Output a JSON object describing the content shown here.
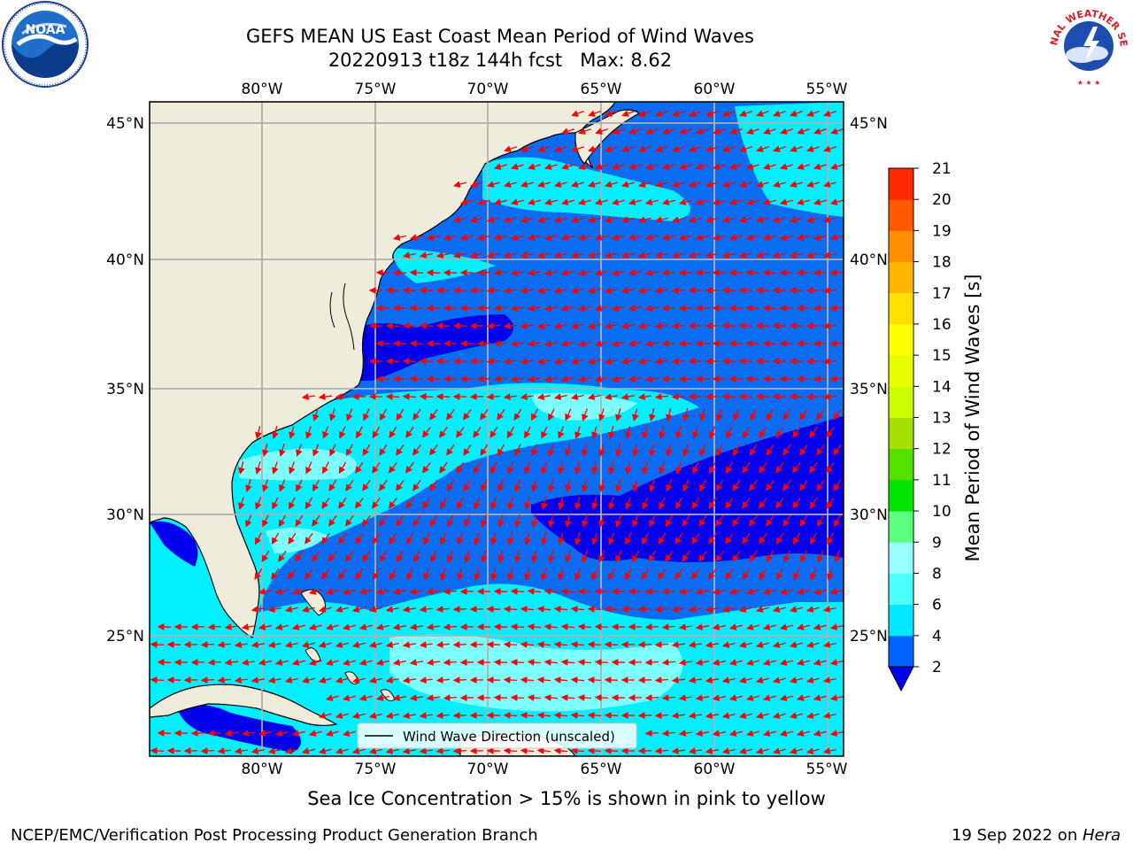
{
  "title": {
    "line1": "GEFS MEAN US East Coast Mean Period of Wind Waves",
    "line2": "20220913 t18z 144h fcst   Max: 8.62"
  },
  "map": {
    "lon_range": [
      -85,
      -54
    ],
    "lat_range": [
      20.5,
      46
    ],
    "lon_ticks": [
      "80°W",
      "75°W",
      "70°W",
      "65°W",
      "60°W",
      "55°W"
    ],
    "lat_ticks": [
      "45°N",
      "40°N",
      "35°N",
      "30°N",
      "25°N"
    ],
    "land_color": "#efecdc",
    "arrow_color": "#ff0000",
    "grid_color": "#b0b0b0"
  },
  "colorbar": {
    "label": "Mean Period of Wind Waves [s]",
    "ticks": [
      "2",
      "4",
      "6",
      "8",
      "9",
      "10",
      "11",
      "12",
      "13",
      "14",
      "15",
      "16",
      "17",
      "18",
      "19",
      "20",
      "21"
    ],
    "colors": [
      "#0063ff",
      "#00e8ff",
      "#4dffff",
      "#99ffff",
      "#5dff80",
      "#00e400",
      "#55e000",
      "#a6e000",
      "#ccff00",
      "#e8ff00",
      "#ffff00",
      "#ffe000",
      "#ffb600",
      "#ff8e00",
      "#ff5a00",
      "#ff2a00",
      "#ff0000"
    ],
    "under_color": "#0000ee"
  },
  "legend": {
    "label": "Wind Wave Direction (unscaled)"
  },
  "note": "Sea Ice Concentration > 15% is shown in pink to yellow",
  "footer": {
    "left": "NCEP/EMC/Verification Post Processing Product Generation Branch",
    "right_date": "19 Sep 2022 on ",
    "right_host": "Hera"
  },
  "logos": {
    "noaa": "NOAA",
    "nws": "NATIONAL WEATHER SERVICE"
  }
}
